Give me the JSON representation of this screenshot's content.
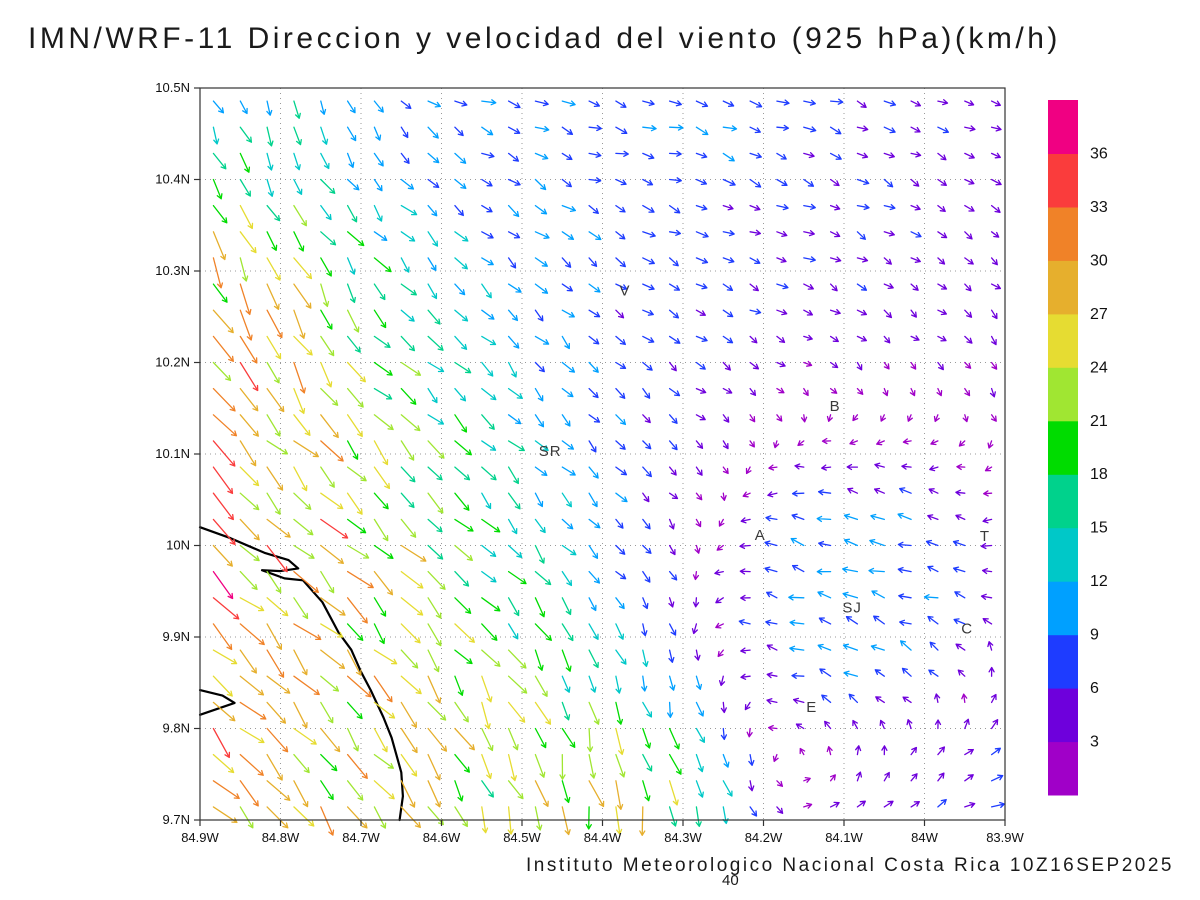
{
  "chart_data": {
    "type": "vector_field",
    "title": "IMN/WRF-11 Direccion y velocidad del viento (925 hPa)(km/h)",
    "footer": "Instituto Meteorologico Nacional Costa Rica 10Z16SEP2025",
    "stray_bottom_label": "40",
    "xlabel": "",
    "ylabel": "",
    "grid": true,
    "x_axis": {
      "min": -84.9,
      "max": -83.9,
      "tick_labels": [
        "84.9W",
        "84.8W",
        "84.7W",
        "84.6W",
        "84.5W",
        "84.4W",
        "84.3W",
        "84.2W",
        "84.1W",
        "84W",
        "83.9W"
      ]
    },
    "y_axis": {
      "min": 9.7,
      "max": 10.5,
      "tick_labels_top_to_bottom": [
        "10.5N",
        "10.4N",
        "10.3N",
        "10.2N",
        "10.1N",
        "10N",
        "9.9N",
        "9.8N",
        "9.7N"
      ]
    },
    "colorbar": {
      "units": "km/h",
      "levels": [
        3,
        6,
        9,
        12,
        15,
        18,
        21,
        24,
        27,
        30,
        33,
        36
      ],
      "colors_bottom_to_top": [
        "#A000C8",
        "#6E00DC",
        "#1E3CFF",
        "#00A0FF",
        "#00C8C8",
        "#00D28C",
        "#00DC00",
        "#A0E632",
        "#E6DC32",
        "#E6AF2D",
        "#F08228",
        "#FA3C3C",
        "#F00082"
      ]
    },
    "stations": [
      {
        "name": "V",
        "lon": -84.372,
        "lat": 10.273
      },
      {
        "name": "B",
        "lon": -84.111,
        "lat": 10.147
      },
      {
        "name": "SR",
        "lon": -84.465,
        "lat": 10.098
      },
      {
        "name": "A",
        "lon": -84.204,
        "lat": 10.006
      },
      {
        "name": "SJ",
        "lon": -84.09,
        "lat": 9.927
      },
      {
        "name": "C",
        "lon": -83.947,
        "lat": 9.904
      },
      {
        "name": "E",
        "lon": -84.14,
        "lat": 9.818
      },
      {
        "name": "T",
        "lon": -83.925,
        "lat": 10.005
      }
    ],
    "coastline_lonlat": [
      [
        [
          -84.9,
          10.02
        ],
        [
          -84.862,
          10.008
        ],
        [
          -84.82,
          9.992
        ],
        [
          -84.79,
          9.984
        ],
        [
          -84.778,
          9.975
        ],
        [
          -84.8,
          9.972
        ],
        [
          -84.823,
          9.973
        ],
        [
          -84.795,
          9.964
        ],
        [
          -84.772,
          9.962
        ],
        [
          -84.748,
          9.938
        ],
        [
          -84.728,
          9.905
        ],
        [
          -84.712,
          9.886
        ],
        [
          -84.7,
          9.862
        ],
        [
          -84.688,
          9.842
        ],
        [
          -84.672,
          9.812
        ],
        [
          -84.662,
          9.79
        ],
        [
          -84.65,
          9.752
        ],
        [
          -84.648,
          9.726
        ],
        [
          -84.652,
          9.7
        ]
      ],
      [
        [
          -84.9,
          9.842
        ],
        [
          -84.872,
          9.836
        ],
        [
          -84.857,
          9.828
        ],
        [
          -84.9,
          9.815
        ]
      ]
    ],
    "wind_field": {
      "grid": {
        "nx": 30,
        "ny": 28
      },
      "base": {
        "u": 3,
        "v": -2,
        "w": 0.5
      },
      "regions": [
        {
          "lon": -84.85,
          "lat": 9.95,
          "r": 0.3,
          "u": 26,
          "v": -23,
          "w": 4
        },
        {
          "lon": -84.72,
          "lat": 9.74,
          "r": 0.22,
          "u": 8,
          "v": -22,
          "w": 2
        },
        {
          "lon": -84.88,
          "lat": 10.24,
          "r": 0.13,
          "u": 12,
          "v": -32,
          "w": 4
        },
        {
          "lon": -84.82,
          "lat": 10.45,
          "r": 0.15,
          "u": 2,
          "v": -15,
          "w": 2
        },
        {
          "lon": -84.3,
          "lat": 10.46,
          "r": 0.45,
          "u": 10,
          "v": -2,
          "w": 2
        },
        {
          "lon": -84.35,
          "lat": 10.05,
          "r": 0.3,
          "u": -2,
          "v": -3,
          "w": 1
        },
        {
          "lon": -84.08,
          "lat": 9.95,
          "r": 0.15,
          "u": -20,
          "v": 6,
          "w": 3
        },
        {
          "lon": -83.95,
          "lat": 10.25,
          "r": 0.3,
          "u": -2,
          "v": -4,
          "w": 1
        },
        {
          "lon": -84.42,
          "lat": 9.73,
          "r": 0.14,
          "u": 5,
          "v": -30,
          "w": 3
        },
        {
          "lon": -83.98,
          "lat": 9.76,
          "r": 0.18,
          "u": 10,
          "v": 6,
          "w": 1.5
        },
        {
          "lon": -84.55,
          "lat": 10.18,
          "r": 0.18,
          "u": 5,
          "v": -13,
          "w": 1.5
        }
      ],
      "jitter": {
        "angle": 0.6,
        "speed": 0.5
      },
      "arrow": {
        "min_len": 6,
        "per_kmh": 0.8,
        "max_len": 33,
        "head_len": 5,
        "stroke_width": 1.3
      }
    }
  }
}
